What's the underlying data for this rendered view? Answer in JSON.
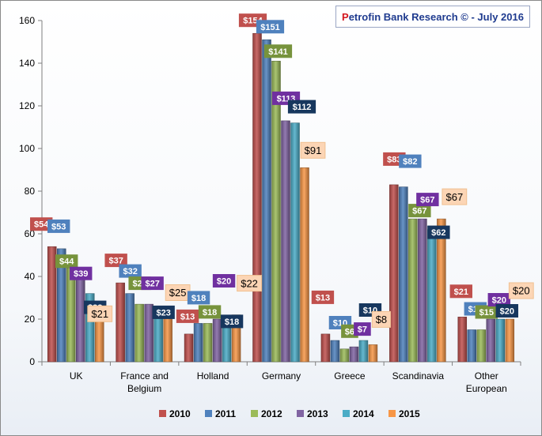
{
  "header": {
    "title_first": "P",
    "title_rest": "etrofin Bank Research © - July 2016"
  },
  "chart_data": {
    "type": "bar",
    "title": "Petrofin Bank Research © - July 2016",
    "xlabel": "",
    "ylabel": "",
    "ylim": [
      0,
      160
    ],
    "yticks": [
      0,
      20,
      40,
      60,
      80,
      100,
      120,
      140,
      160
    ],
    "grid": false,
    "legend_position": "bottom",
    "categories": [
      "UK",
      "France and Belgium",
      "Holland",
      "Germany",
      "Greece",
      "Scandinavia",
      "Other European"
    ],
    "category_lines": [
      [
        "UK"
      ],
      [
        "France and",
        "Belgium"
      ],
      [
        "Holland"
      ],
      [
        "Germany"
      ],
      [
        "Greece"
      ],
      [
        "Scandinavia"
      ],
      [
        "Other",
        "European"
      ]
    ],
    "series": [
      {
        "name": "2010",
        "values": [
          54,
          37,
          13,
          154,
          13,
          83,
          21
        ],
        "color": "#c0504d",
        "labels": [
          "$54",
          "$37",
          "$13",
          "$154",
          "$13",
          "$83",
          "$21"
        ]
      },
      {
        "name": "2011",
        "values": [
          53,
          32,
          18,
          151,
          10,
          82,
          15
        ],
        "color": "#4f81bd",
        "labels": [
          "$53",
          "$32",
          "$18",
          "$151",
          "$10",
          "$82",
          "$15"
        ]
      },
      {
        "name": "2012",
        "values": [
          44,
          27,
          18,
          141,
          6,
          67,
          15
        ],
        "color": "#9bbb59",
        "labels": [
          "$44",
          "$27",
          "$18",
          "$141",
          "$6",
          "$67",
          "$15"
        ]
      },
      {
        "name": "2013",
        "values": [
          39,
          27,
          20,
          113,
          7,
          67,
          20
        ],
        "color": "#8064a2",
        "labels": [
          "$39",
          "$27",
          "$20",
          "$113",
          "$7",
          "$67",
          "$20"
        ]
      },
      {
        "name": "2014",
        "values": [
          32,
          23,
          18,
          112,
          10,
          62,
          20
        ],
        "color": "#4bacc6",
        "labels": [
          "$32",
          "$23",
          "$18",
          "$112",
          "$10",
          "$62",
          "$20"
        ]
      },
      {
        "name": "2015",
        "values": [
          21,
          25,
          22,
          91,
          8,
          67,
          20
        ],
        "color": "#f79646",
        "labels": [
          "$21",
          "$25",
          "$22",
          "$91",
          "$8",
          "$67",
          "$20"
        ]
      }
    ],
    "label_styles": {
      "2010": {
        "fill": "#c0504d",
        "text": "#ffffff"
      },
      "2011": {
        "fill": "#4f81bd",
        "text": "#ffffff"
      },
      "2012": {
        "fill": "#77933c",
        "text": "#ffffff"
      },
      "2013": {
        "fill": "#7030a0",
        "text": "#ffffff"
      },
      "2014": {
        "fill": "#17375e",
        "text": "#ffffff"
      },
      "2015": {
        "fill": "#fcd5b5",
        "text": "#000000"
      }
    }
  }
}
